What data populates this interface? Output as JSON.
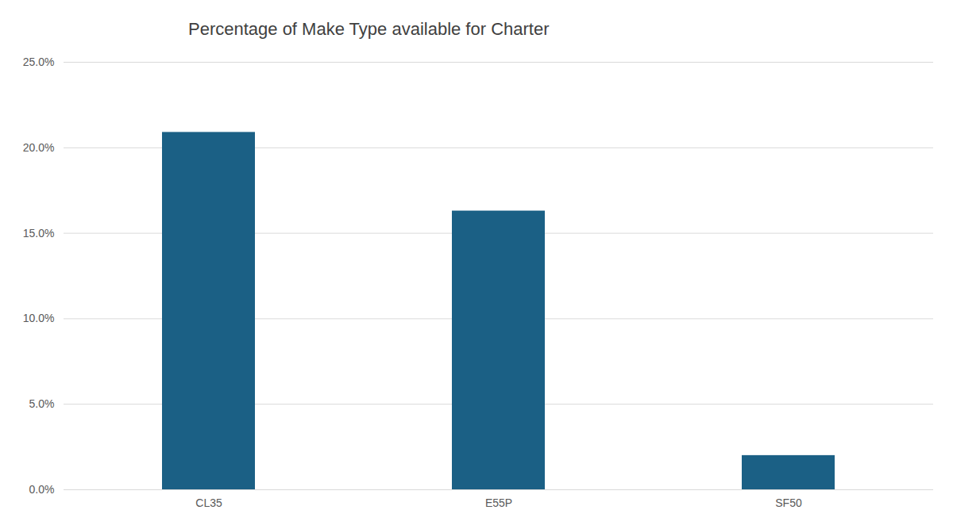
{
  "chart_data": {
    "type": "bar",
    "title": "Percentage of Make Type available for Charter",
    "categories": [
      "CL35",
      "E55P",
      "SF50"
    ],
    "values": [
      20.9,
      16.3,
      2.0
    ],
    "color": "#1b6085",
    "ylim": [
      0,
      25
    ],
    "yticks": [
      {
        "value": 0,
        "label": "0.0%"
      },
      {
        "value": 5,
        "label": "5.0%"
      },
      {
        "value": 10,
        "label": "10.0%"
      },
      {
        "value": 15,
        "label": "15.0%"
      },
      {
        "value": 20,
        "label": "20.0%"
      },
      {
        "value": 25,
        "label": "25.0%"
      }
    ],
    "grid": true
  }
}
